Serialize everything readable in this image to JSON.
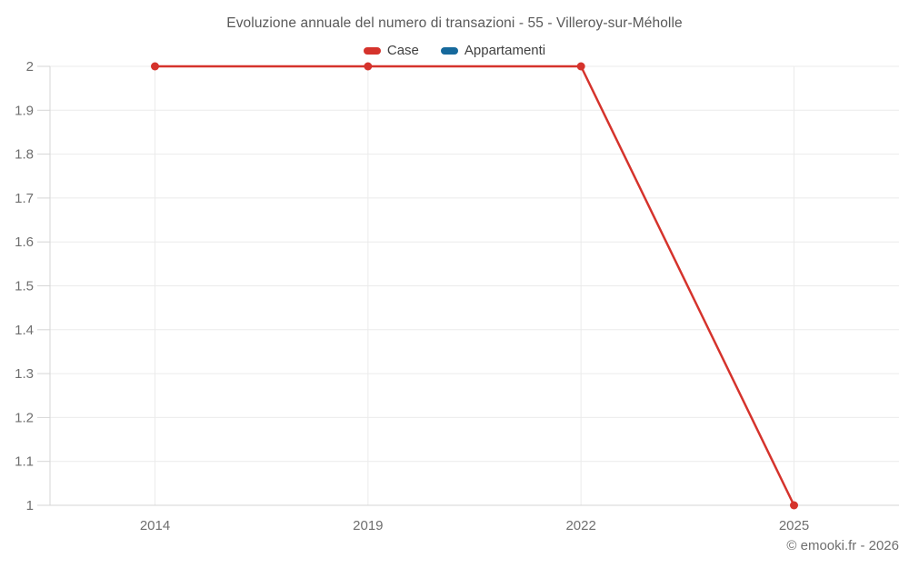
{
  "chart_data": {
    "type": "line",
    "title": "Evoluzione annuale del numero di transazioni - 55 - Villeroy-sur-Méholle",
    "categories": [
      "2014",
      "2019",
      "2022",
      "2025"
    ],
    "series": [
      {
        "name": "Case",
        "color": "#d5332c",
        "values": [
          2,
          2,
          2,
          1
        ]
      },
      {
        "name": "Appartamenti",
        "color": "#16699c",
        "values": []
      }
    ],
    "xlabel": "",
    "ylabel": "",
    "ylim": [
      1,
      2
    ],
    "yticks": [
      2,
      1.9,
      1.8,
      1.7,
      1.6,
      1.5,
      1.4,
      1.3,
      1.2,
      1.1,
      1
    ],
    "ytick_labels": [
      "2",
      "1.9",
      "1.8",
      "1.7",
      "1.6",
      "1.5",
      "1.4",
      "1.3",
      "1.2",
      "1.1",
      "1"
    ],
    "grid": true,
    "legend_position": "top-center",
    "colors": {
      "grid": "#ebebeb",
      "axis": "#d6d6d6",
      "tick_label": "#6f6f6f",
      "title": "#595959",
      "legend_text": "#404040",
      "attribution": "#6e6e6e",
      "background": "#ffffff"
    }
  },
  "footer": {
    "attribution": "© emooki.fr - 2026"
  }
}
